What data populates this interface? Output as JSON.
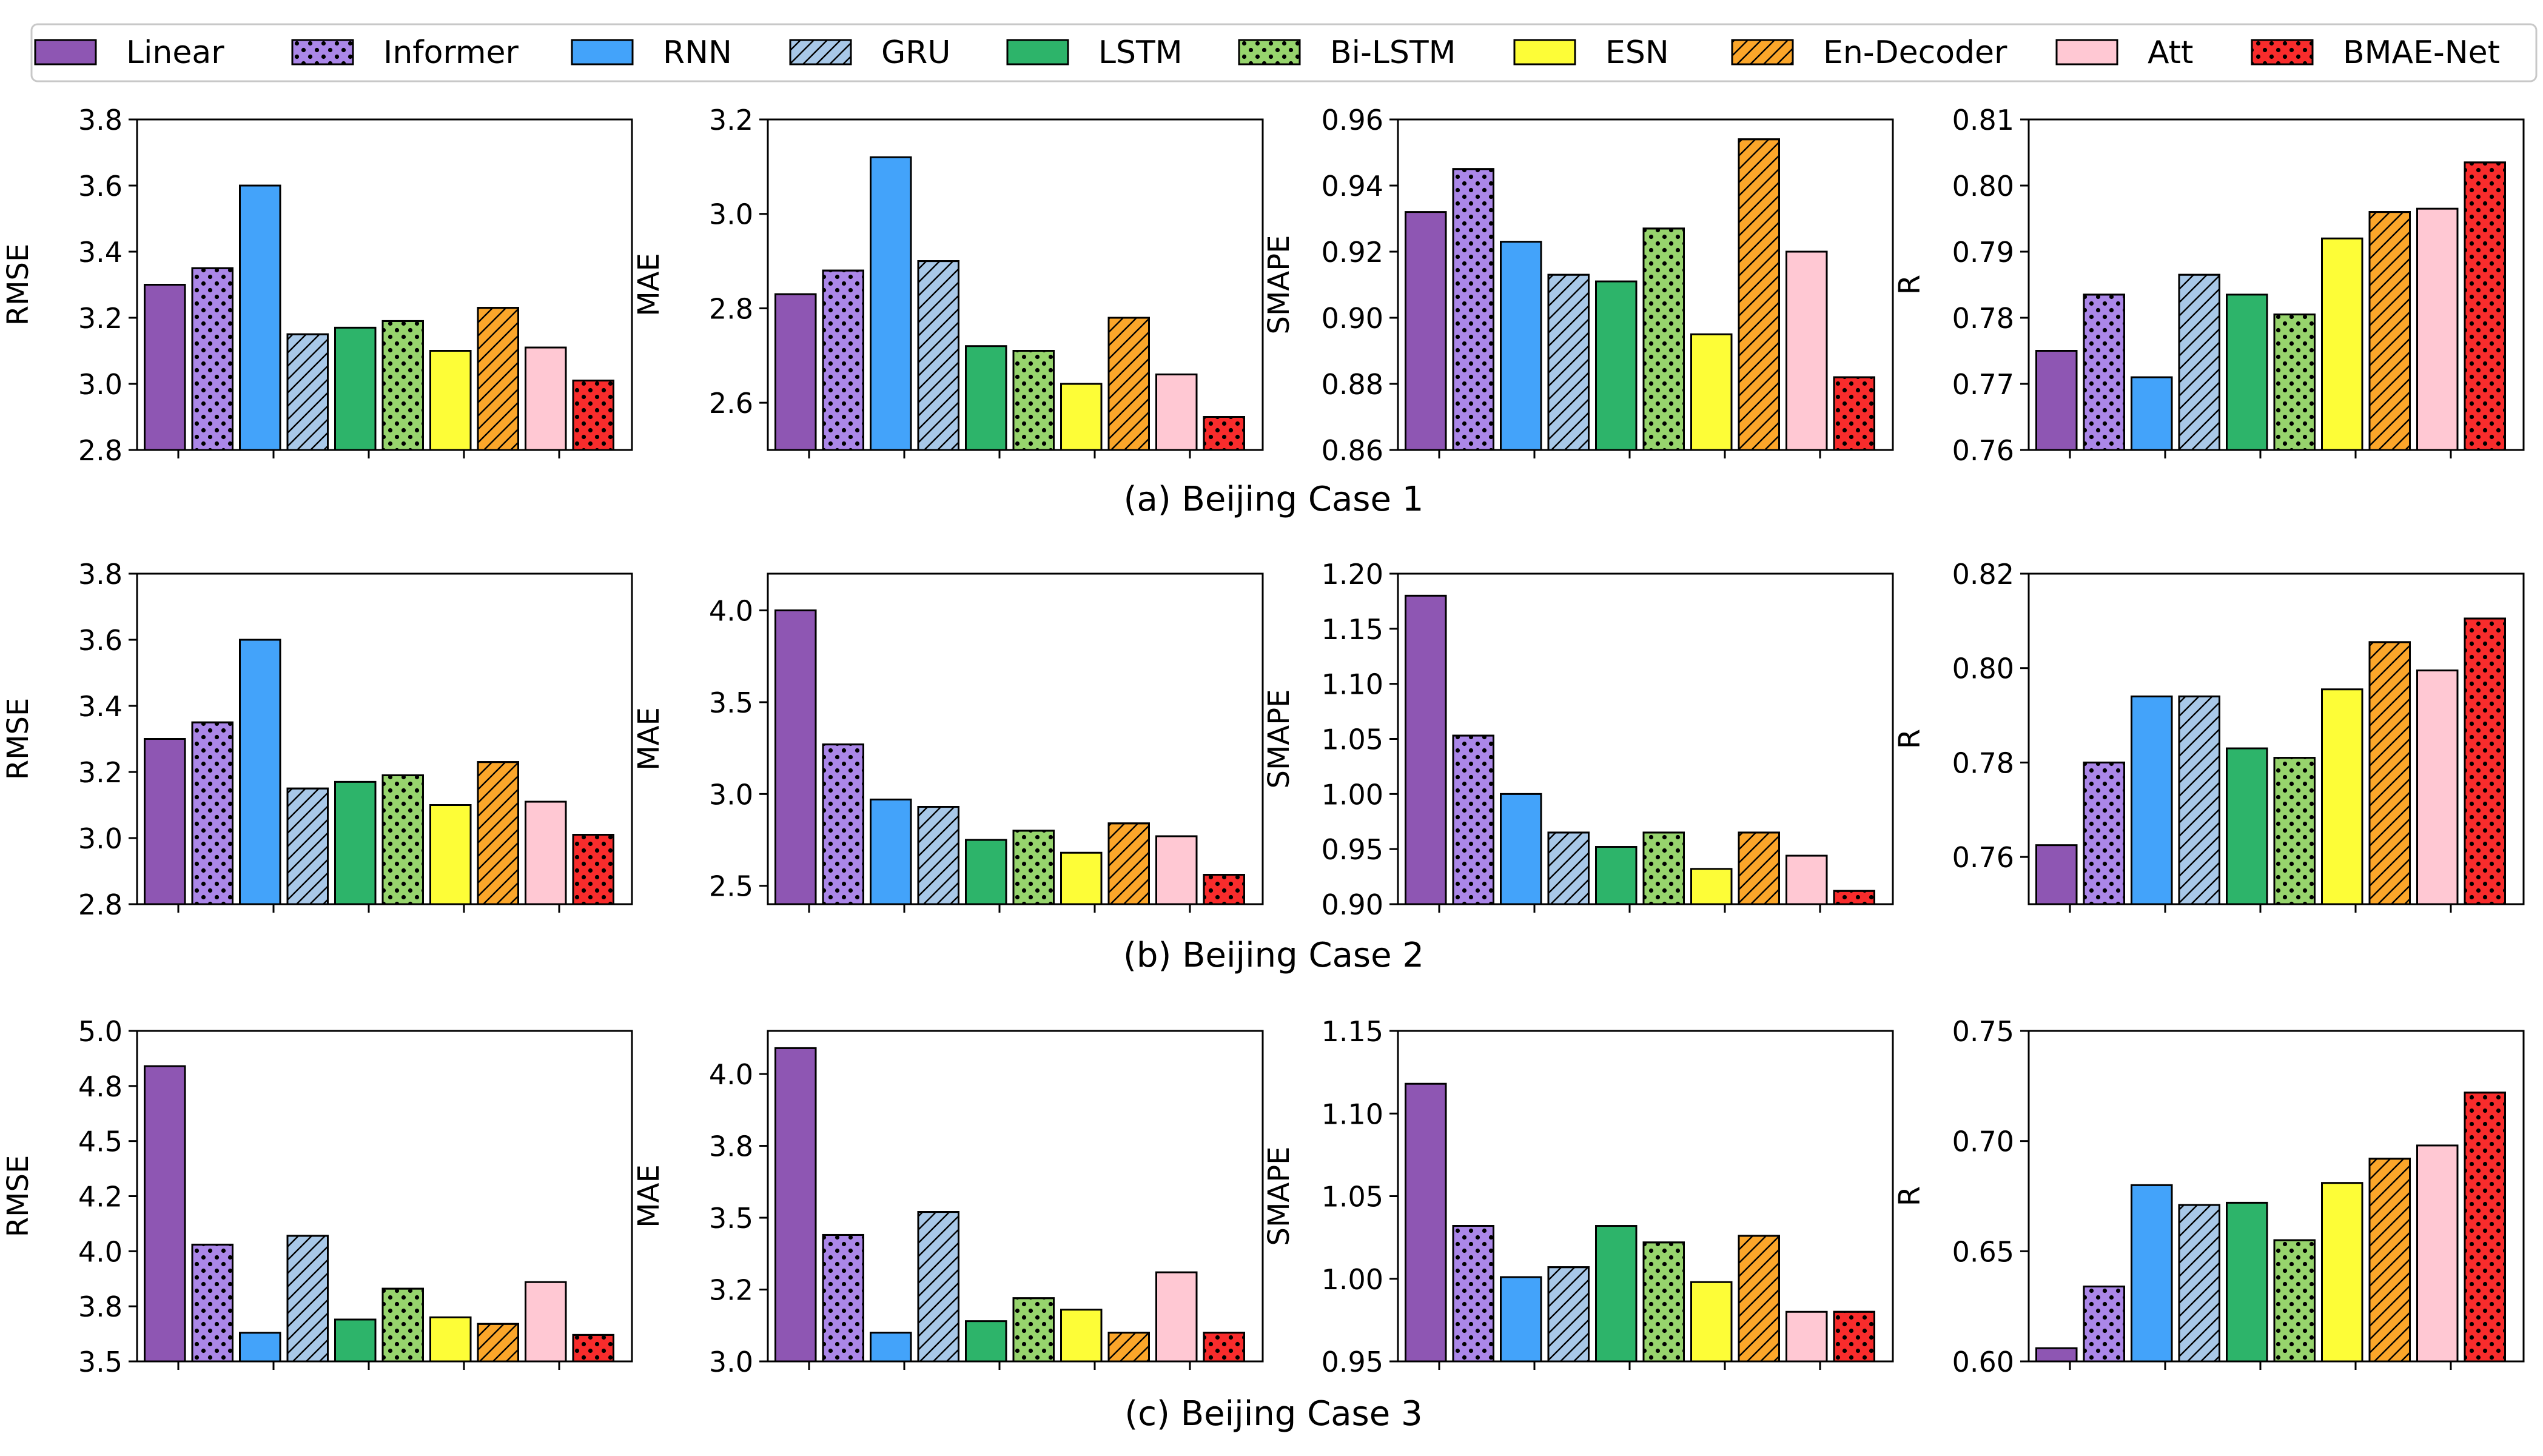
{
  "colors": {
    "Linear": "#8e56b3",
    "Informer": "#ab87e8",
    "RNN": "#43a3fa",
    "GRU": "#a8c8e8",
    "LSTM": "#2db46a",
    "Bi-LSTM": "#97d46d",
    "ESN": "#fdfd37",
    "En-Decoder": "#fba62a",
    "Att": "#ffc8d3",
    "BMAE-Net": "#f82c2c"
  },
  "legend": [
    {
      "name": "Linear",
      "hatch": "none"
    },
    {
      "name": "Informer",
      "hatch": "dots"
    },
    {
      "name": "RNN",
      "hatch": "none"
    },
    {
      "name": "GRU",
      "hatch": "diag"
    },
    {
      "name": "LSTM",
      "hatch": "none"
    },
    {
      "name": "Bi-LSTM",
      "hatch": "dots"
    },
    {
      "name": "ESN",
      "hatch": "none"
    },
    {
      "name": "En-Decoder",
      "hatch": "diag"
    },
    {
      "name": "Att",
      "hatch": "none"
    },
    {
      "name": "BMAE-Net",
      "hatch": "dots"
    }
  ],
  "captions": [
    "(a) Beijing Case 1",
    "(b) Beijing Case 2",
    "(c) Beijing Case 3"
  ],
  "chart_data": [
    {
      "type": "bar",
      "row": 0,
      "col": 0,
      "ylabel": "RMSE",
      "ylim": [
        2.8,
        3.8
      ],
      "ticks": [
        2.8,
        3.0,
        3.2,
        3.4,
        3.6,
        3.8
      ],
      "tick_labels": [
        "2.8",
        "3.0",
        "3.2",
        "3.4",
        "3.6",
        "3.8"
      ],
      "values": [
        3.3,
        3.35,
        3.6,
        3.15,
        3.17,
        3.19,
        3.1,
        3.23,
        3.11,
        3.01
      ]
    },
    {
      "type": "bar",
      "row": 0,
      "col": 1,
      "ylabel": "MAE",
      "ylim": [
        2.5,
        3.2
      ],
      "ticks": [
        2.6,
        2.8,
        3.0,
        3.2
      ],
      "tick_labels": [
        "2.6",
        "2.8",
        "3.0",
        "3.2"
      ],
      "values": [
        2.83,
        2.88,
        3.12,
        2.9,
        2.72,
        2.71,
        2.64,
        2.78,
        2.66,
        2.57
      ]
    },
    {
      "type": "bar",
      "row": 0,
      "col": 2,
      "ylabel": "SMAPE",
      "ylim": [
        0.86,
        0.96
      ],
      "ticks": [
        0.86,
        0.88,
        0.9,
        0.92,
        0.94,
        0.96
      ],
      "tick_labels": [
        "0.86",
        "0.88",
        "0.90",
        "0.92",
        "0.94",
        "0.96"
      ],
      "values": [
        0.932,
        0.945,
        0.923,
        0.913,
        0.911,
        0.927,
        0.895,
        0.954,
        0.92,
        0.882
      ]
    },
    {
      "type": "bar",
      "row": 0,
      "col": 3,
      "ylabel": "R",
      "ylim": [
        0.76,
        0.81
      ],
      "ticks": [
        0.76,
        0.77,
        0.78,
        0.79,
        0.8,
        0.81
      ],
      "tick_labels": [
        "0.76",
        "0.77",
        "0.78",
        "0.79",
        "0.80",
        "0.81"
      ],
      "values": [
        0.775,
        0.7835,
        0.771,
        0.7865,
        0.7835,
        0.7805,
        0.792,
        0.796,
        0.7965,
        0.8035
      ]
    },
    {
      "type": "bar",
      "row": 1,
      "col": 0,
      "ylabel": "RMSE",
      "ylim": [
        2.8,
        3.8
      ],
      "ticks": [
        2.8,
        3.0,
        3.2,
        3.4,
        3.6,
        3.8
      ],
      "tick_labels": [
        "2.8",
        "3.0",
        "3.2",
        "3.4",
        "3.6",
        "3.8"
      ],
      "values": [
        3.3,
        3.35,
        3.6,
        3.15,
        3.17,
        3.19,
        3.1,
        3.23,
        3.11,
        3.01
      ]
    },
    {
      "type": "bar",
      "row": 1,
      "col": 1,
      "ylabel": "MAE",
      "ylim": [
        2.4,
        4.2
      ],
      "ticks": [
        2.5,
        3.0,
        3.5,
        4.0
      ],
      "tick_labels": [
        "2.5",
        "3.0",
        "3.5",
        "4.0"
      ],
      "values": [
        4.0,
        3.27,
        2.97,
        2.93,
        2.75,
        2.8,
        2.68,
        2.84,
        2.77,
        2.56
      ]
    },
    {
      "type": "bar",
      "row": 1,
      "col": 2,
      "ylabel": "SMAPE",
      "ylim": [
        0.9,
        1.2
      ],
      "ticks": [
        0.9,
        0.95,
        1.0,
        1.05,
        1.1,
        1.15,
        1.2
      ],
      "tick_labels": [
        "0.90",
        "0.95",
        "1.00",
        "1.05",
        "1.10",
        "1.15",
        "1.20"
      ],
      "values": [
        1.18,
        1.053,
        1.0,
        0.965,
        0.952,
        0.965,
        0.932,
        0.965,
        0.944,
        0.912
      ]
    },
    {
      "type": "bar",
      "row": 1,
      "col": 3,
      "ylabel": "R",
      "ylim": [
        0.75,
        0.82
      ],
      "ticks": [
        0.76,
        0.78,
        0.8,
        0.82
      ],
      "tick_labels": [
        "0.76",
        "0.78",
        "0.80",
        "0.82"
      ],
      "values": [
        0.7625,
        0.78,
        0.794,
        0.794,
        0.783,
        0.781,
        0.7955,
        0.8055,
        0.7995,
        0.8105
      ]
    },
    {
      "type": "bar",
      "row": 2,
      "col": 0,
      "ylabel": "RMSE",
      "ylim": [
        3.5,
        5.0
      ],
      "ticks": [
        3.5,
        3.75,
        4.0,
        4.25,
        4.5,
        4.75,
        5.0
      ],
      "tick_labels": [
        "3.5",
        "3.8",
        "4.0",
        "4.2",
        "4.5",
        "4.8",
        "5.0"
      ],
      "values": [
        4.84,
        4.03,
        3.63,
        4.07,
        3.69,
        3.83,
        3.7,
        3.67,
        3.86,
        3.62
      ]
    },
    {
      "type": "bar",
      "row": 2,
      "col": 1,
      "ylabel": "MAE",
      "ylim": [
        3.0,
        4.15
      ],
      "ticks": [
        3.0,
        3.25,
        3.5,
        3.75,
        4.0
      ],
      "tick_labels": [
        "3.0",
        "3.2",
        "3.5",
        "3.8",
        "4.0"
      ],
      "values": [
        4.09,
        3.44,
        3.1,
        3.52,
        3.14,
        3.22,
        3.18,
        3.1,
        3.31,
        3.1
      ]
    },
    {
      "type": "bar",
      "row": 2,
      "col": 2,
      "ylabel": "SMAPE",
      "ylim": [
        0.95,
        1.15
      ],
      "ticks": [
        0.95,
        1.0,
        1.05,
        1.1,
        1.15
      ],
      "tick_labels": [
        "0.95",
        "1.00",
        "1.05",
        "1.10",
        "1.15"
      ],
      "values": [
        1.118,
        1.032,
        1.001,
        1.007,
        1.032,
        1.022,
        0.998,
        1.026,
        0.98,
        0.98
      ]
    },
    {
      "type": "bar",
      "row": 2,
      "col": 3,
      "ylabel": "R",
      "ylim": [
        0.6,
        0.75
      ],
      "ticks": [
        0.6,
        0.65,
        0.7,
        0.75
      ],
      "tick_labels": [
        "0.60",
        "0.65",
        "0.70",
        "0.75"
      ],
      "values": [
        0.606,
        0.634,
        0.68,
        0.671,
        0.672,
        0.655,
        0.681,
        0.692,
        0.698,
        0.722
      ]
    }
  ]
}
